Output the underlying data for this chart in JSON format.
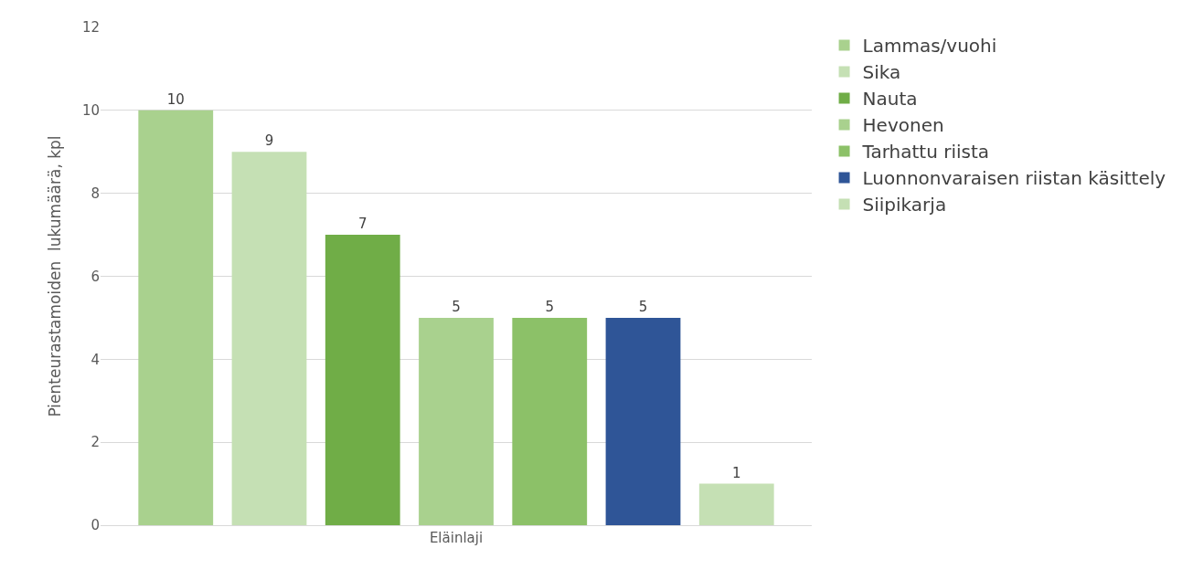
{
  "chart_data": {
    "type": "bar",
    "categories": [
      "Eläinlaji"
    ],
    "ylabel": "Pienteurastamoiden  lukumäärä, kpl",
    "series": [
      {
        "name": "Lammas/vuohi",
        "color": "#a9d18e",
        "values": [
          10
        ]
      },
      {
        "name": "Sika",
        "color": "#c5e0b4",
        "values": [
          9
        ]
      },
      {
        "name": "Nauta",
        "color": "#70ad47",
        "values": [
          7
        ]
      },
      {
        "name": "Hevonen",
        "color": "#a9d18e",
        "values": [
          5
        ]
      },
      {
        "name": "Tarhattu riista",
        "color": "#8cc168",
        "values": [
          5
        ]
      },
      {
        "name": "Luonnonvaraisen riistan käsittely",
        "color": "#2f5597",
        "values": [
          5
        ]
      },
      {
        "name": "Siipikarja",
        "color": "#c5e0b4",
        "values": [
          1
        ]
      }
    ],
    "ylim": [
      0,
      12
    ],
    "yticks": [
      0,
      2,
      4,
      6,
      8,
      10,
      12
    ],
    "grid": "y",
    "legend": "right",
    "data_labels": true
  }
}
